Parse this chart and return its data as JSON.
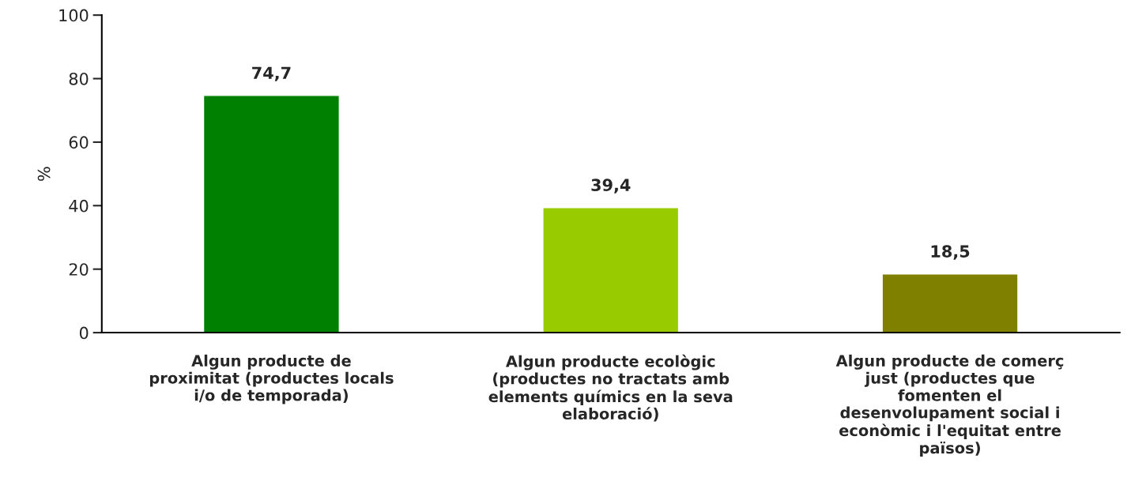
{
  "chart_data": {
    "type": "bar",
    "ylabel": "%",
    "categories": [
      "Algun producte de\nproximitat (productes locals\ni/o de temporada)",
      "Algun producte ecològic\n(productes no tractats amb\nelements químics en la seva\nelaboració)",
      "Algun producte de comerç\njust (productes que\nfomenten el\ndesenvolupament social i\neconòmic i l'equitat entre\npaïsos)"
    ],
    "values": [
      74.7,
      39.4,
      18.5
    ],
    "value_labels": [
      "74,7",
      "39,4",
      "18,5"
    ],
    "colors": [
      "#008000",
      "#99cc00",
      "#808000"
    ],
    "ylim": [
      0,
      100
    ],
    "yticks": [
      0,
      20,
      40,
      60,
      80,
      100
    ],
    "grid": false,
    "legend": false
  }
}
